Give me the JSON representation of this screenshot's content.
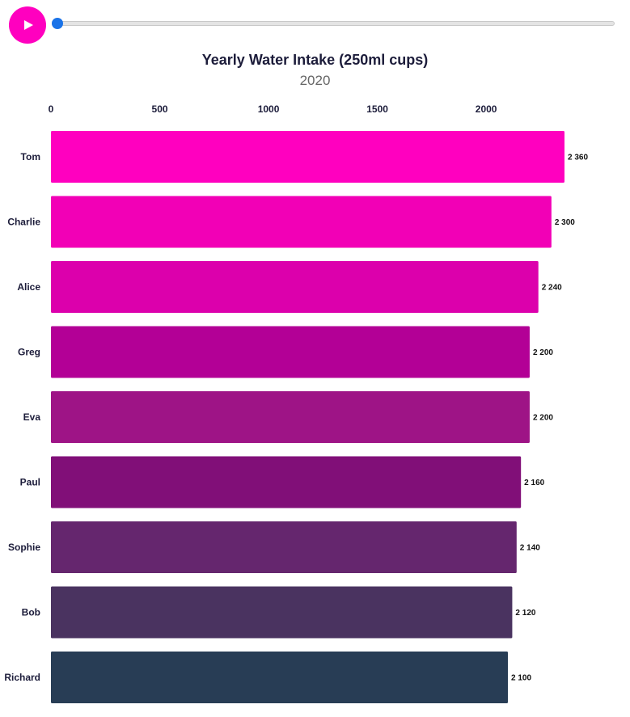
{
  "player": {
    "play_icon": "play-icon",
    "play_color": "#ff00bf",
    "slider_position": 0,
    "slider_color": "#1a73e8"
  },
  "chart_data": {
    "type": "bar",
    "orientation": "horizontal",
    "title": "Yearly Water Intake (250ml cups)",
    "subtitle": "2020",
    "xlim": [
      0,
      2360
    ],
    "xticks": [
      0,
      500,
      1000,
      1500,
      2000
    ],
    "categories": [
      "Tom",
      "Charlie",
      "Alice",
      "Greg",
      "Eva",
      "Paul",
      "Sophie",
      "Bob",
      "Richard"
    ],
    "values": [
      2360,
      2300,
      2240,
      2200,
      2200,
      2160,
      2140,
      2120,
      2100
    ],
    "value_labels": [
      "2 360",
      "2 300",
      "2 240",
      "2 200",
      "2 200",
      "2 160",
      "2 140",
      "2 120",
      "2 100"
    ],
    "colors": [
      "#ff00bf",
      "#f200b6",
      "#dc00ac",
      "#b30096",
      "#9e1486",
      "#810f78",
      "#65266e",
      "#4a3360",
      "#283d55"
    ],
    "grid": false,
    "legend": "none"
  }
}
